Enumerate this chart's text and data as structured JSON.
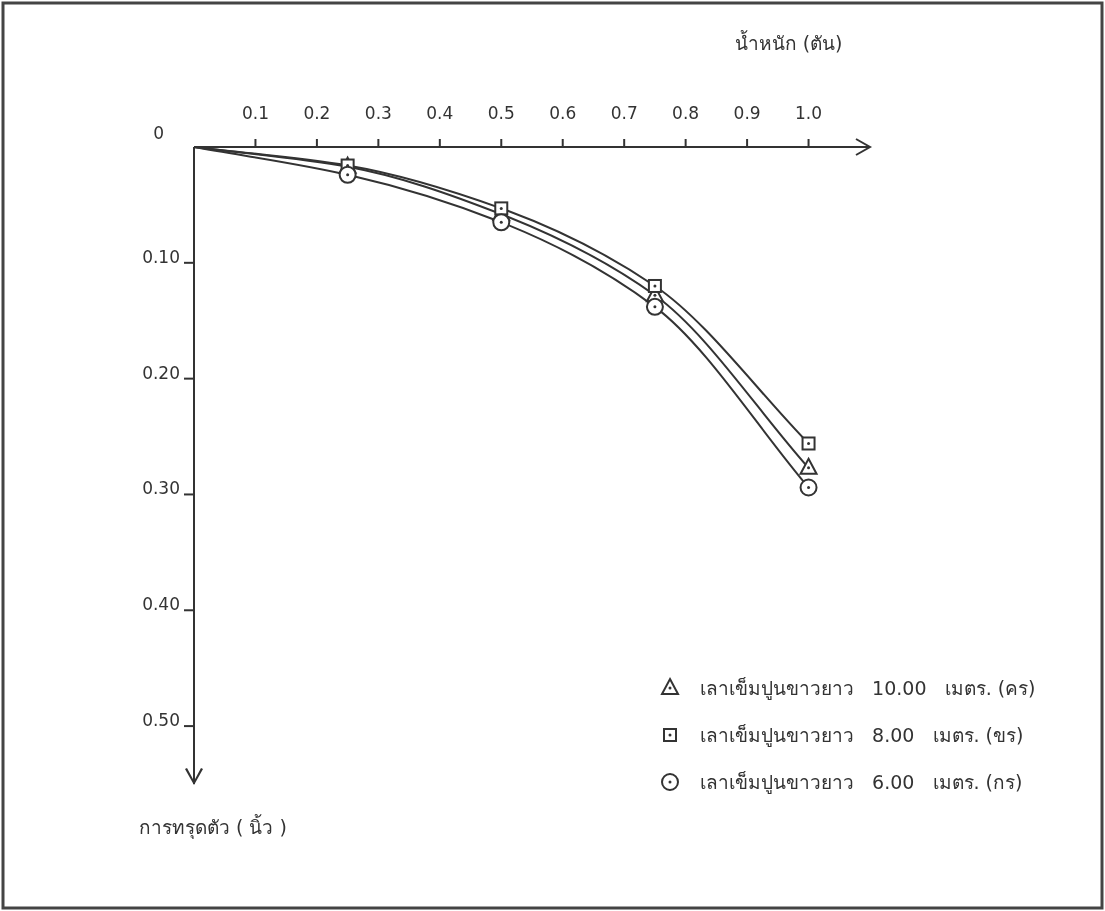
{
  "chart_data": {
    "type": "line",
    "xlabel": "น้ำหนัก (ตัน)",
    "ylabel": "การทรุดตัว ( นิ้ว )",
    "xlim": [
      0,
      1.1
    ],
    "ylim": [
      0.55,
      0
    ],
    "xticks": [
      0.1,
      0.2,
      0.3,
      0.4,
      0.5,
      0.6,
      0.7,
      0.8,
      0.9,
      {
        "value": 1,
        "label": "1.0"
      }
    ],
    "yticks": [
      0,
      {
        "value": 0.1,
        "label": "0.10"
      },
      {
        "value": 0.2,
        "label": "0.20"
      },
      {
        "value": 0.3,
        "label": "0.30"
      },
      {
        "value": 0.4,
        "label": "0.40"
      },
      {
        "value": 0.5,
        "label": "0.50"
      }
    ],
    "x": [
      0,
      0.25,
      0.5,
      0.75,
      1.0
    ],
    "series": [
      {
        "name": "เลาเข็มปูนขาวยาว   10.00   เมตร. (คร)",
        "color": "#333333",
        "marker": "triangle",
        "values": [
          0,
          0.017,
          0.058,
          0.128,
          0.277
        ]
      },
      {
        "name": "เลาเข็มปูนขาวยาว   8.00   เมตร. (ขร)",
        "color": "#333333",
        "marker": "square",
        "values": [
          0,
          0.016,
          0.053,
          0.12,
          0.256
        ]
      },
      {
        "name": "เลาเข็มปูนขาวยาว   6.00   เมตร. (กร)",
        "color": "#333333",
        "marker": "circle",
        "values": [
          0,
          0.024,
          0.065,
          0.138,
          0.294
        ]
      }
    ],
    "legend": "bottom right"
  }
}
